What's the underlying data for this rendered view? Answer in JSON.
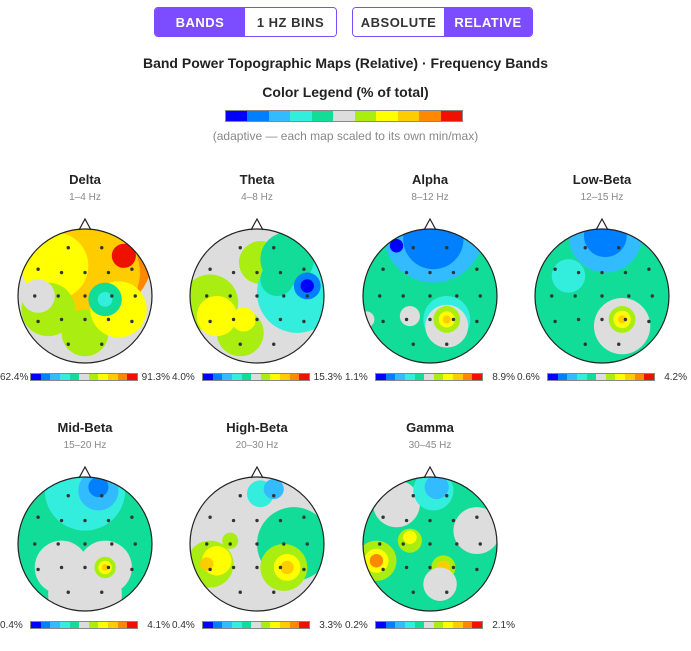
{
  "toggles": {
    "view": [
      {
        "label": "BANDS",
        "active": true
      },
      {
        "label": "1 HZ BINS",
        "active": false
      }
    ],
    "scale": [
      {
        "label": "ABSOLUTE",
        "active": false
      },
      {
        "label": "RELATIVE",
        "active": true
      }
    ]
  },
  "title": "Band Power Topographic Maps (Relative) · Frequency Bands",
  "legend": {
    "title": "Color Legend (% of total)",
    "note": "(adaptive — each map scaled to its own min/max)",
    "colors": [
      "#0000ff",
      "#0080ff",
      "#33bbff",
      "#33eedd",
      "#11dd99",
      "#dddddd",
      "#aaee11",
      "#ffff00",
      "#ffcc00",
      "#ff8800",
      "#ee1100"
    ]
  },
  "chart_data": {
    "type": "heatmap",
    "maps": [
      {
        "name": "Delta",
        "range": "1–4 Hz",
        "min": "62.4%",
        "max": "91.3%",
        "base": 5,
        "blobs": [
          {
            "x": 0.12,
            "y": -0.62,
            "r": 0.9,
            "v": 9
          },
          {
            "x": 0.1,
            "y": -0.35,
            "r": 0.72,
            "v": 8
          },
          {
            "x": -0.45,
            "y": -0.45,
            "r": 0.5,
            "v": 7
          },
          {
            "x": -0.55,
            "y": 0.2,
            "r": 0.4,
            "v": 6
          },
          {
            "x": 0.0,
            "y": 0.55,
            "r": 0.35,
            "v": 6
          },
          {
            "x": 0.5,
            "y": 0.2,
            "r": 0.42,
            "v": 7
          },
          {
            "x": 0.3,
            "y": 0.05,
            "r": 0.25,
            "v": 4
          },
          {
            "x": -0.7,
            "y": 0.0,
            "r": 0.25,
            "v": 5
          },
          {
            "x": 0.58,
            "y": -0.6,
            "r": 0.18,
            "v": 10
          },
          {
            "x": 0.3,
            "y": 0.05,
            "r": 0.11,
            "v": 3
          }
        ]
      },
      {
        "name": "Theta",
        "range": "4–8 Hz",
        "min": "4.0%",
        "max": "15.3%",
        "base": 5,
        "blobs": [
          {
            "x": -0.7,
            "y": 0.1,
            "r": 0.42,
            "v": 6
          },
          {
            "x": 0.05,
            "y": -0.5,
            "r": 0.32,
            "v": 6
          },
          {
            "x": -0.25,
            "y": 0.55,
            "r": 0.35,
            "v": 6
          },
          {
            "x": 0.6,
            "y": -0.05,
            "r": 0.6,
            "v": 3
          },
          {
            "x": 0.45,
            "y": -0.55,
            "r": 0.4,
            "v": 4
          },
          {
            "x": 0.3,
            "y": -0.25,
            "r": 0.25,
            "v": 4
          },
          {
            "x": -0.6,
            "y": 0.3,
            "r": 0.3,
            "v": 7
          },
          {
            "x": -0.2,
            "y": 0.35,
            "r": 0.18,
            "v": 7
          },
          {
            "x": 0.75,
            "y": -0.15,
            "r": 0.2,
            "v": 1
          },
          {
            "x": 0.75,
            "y": -0.15,
            "r": 0.1,
            "v": 0
          }
        ]
      },
      {
        "name": "Alpha",
        "range": "8–12 Hz",
        "min": "1.1%",
        "max": "8.9%",
        "base": 4,
        "blobs": [
          {
            "x": 0.05,
            "y": -0.95,
            "r": 0.75,
            "v": 2
          },
          {
            "x": 0.05,
            "y": -0.85,
            "r": 0.45,
            "v": 1
          },
          {
            "x": 0.25,
            "y": 0.35,
            "r": 0.35,
            "v": 3
          },
          {
            "x": 0.25,
            "y": 0.45,
            "r": 0.32,
            "v": 5
          },
          {
            "x": -0.3,
            "y": 0.3,
            "r": 0.15,
            "v": 5
          },
          {
            "x": -0.95,
            "y": 0.35,
            "r": 0.12,
            "v": 5
          },
          {
            "x": 0.25,
            "y": 0.35,
            "r": 0.2,
            "v": 6
          },
          {
            "x": 0.25,
            "y": 0.35,
            "r": 0.12,
            "v": 7
          },
          {
            "x": 0.25,
            "y": 0.35,
            "r": 0.06,
            "v": 8
          },
          {
            "x": -0.5,
            "y": -0.75,
            "r": 0.1,
            "v": 0
          }
        ]
      },
      {
        "name": "Low-Beta",
        "range": "12–15 Hz",
        "min": "0.6%",
        "max": "4.2%",
        "base": 4,
        "blobs": [
          {
            "x": 0.05,
            "y": -0.9,
            "r": 0.55,
            "v": 2
          },
          {
            "x": 0.05,
            "y": -0.9,
            "r": 0.32,
            "v": 1
          },
          {
            "x": 0.3,
            "y": 0.45,
            "r": 0.42,
            "v": 5
          },
          {
            "x": 0.3,
            "y": 0.35,
            "r": 0.2,
            "v": 6
          },
          {
            "x": 0.3,
            "y": 0.35,
            "r": 0.13,
            "v": 7
          },
          {
            "x": 0.3,
            "y": 0.35,
            "r": 0.06,
            "v": 8
          },
          {
            "x": -0.5,
            "y": -0.3,
            "r": 0.25,
            "v": 3
          }
        ]
      },
      {
        "name": "Mid-Beta",
        "range": "15–20 Hz",
        "min": "0.4%",
        "max": "4.1%",
        "base": 4,
        "blobs": [
          {
            "x": 0.0,
            "y": -0.8,
            "r": 0.6,
            "v": 3
          },
          {
            "x": 0.2,
            "y": -0.8,
            "r": 0.3,
            "v": 2
          },
          {
            "x": 0.2,
            "y": -0.85,
            "r": 0.15,
            "v": 1
          },
          {
            "x": -0.35,
            "y": 0.35,
            "r": 0.4,
            "v": 5
          },
          {
            "x": 0.3,
            "y": 0.35,
            "r": 0.4,
            "v": 5
          },
          {
            "x": 0.0,
            "y": 0.75,
            "r": 0.55,
            "v": 5
          },
          {
            "x": 0.3,
            "y": 0.35,
            "r": 0.16,
            "v": 6
          },
          {
            "x": 0.3,
            "y": 0.35,
            "r": 0.1,
            "v": 7
          },
          {
            "x": 0.3,
            "y": 0.35,
            "r": 0.05,
            "v": 8
          }
        ]
      },
      {
        "name": "High-Beta",
        "range": "20–30 Hz",
        "min": "0.4%",
        "max": "3.3%",
        "base": 5,
        "blobs": [
          {
            "x": 0.55,
            "y": 0.0,
            "r": 0.55,
            "v": 4
          },
          {
            "x": 0.05,
            "y": -0.75,
            "r": 0.2,
            "v": 3
          },
          {
            "x": 0.25,
            "y": -0.82,
            "r": 0.15,
            "v": 2
          },
          {
            "x": -0.7,
            "y": 0.3,
            "r": 0.35,
            "v": 6
          },
          {
            "x": -0.6,
            "y": 0.25,
            "r": 0.22,
            "v": 7
          },
          {
            "x": 0.4,
            "y": 0.35,
            "r": 0.35,
            "v": 6
          },
          {
            "x": 0.45,
            "y": 0.35,
            "r": 0.2,
            "v": 7
          },
          {
            "x": 0.45,
            "y": 0.35,
            "r": 0.1,
            "v": 8
          },
          {
            "x": -0.4,
            "y": -0.05,
            "r": 0.12,
            "v": 6
          },
          {
            "x": -0.75,
            "y": 0.3,
            "r": 0.1,
            "v": 8
          }
        ]
      },
      {
        "name": "Gamma",
        "range": "30–45 Hz",
        "min": "0.2%",
        "max": "2.1%",
        "base": 4,
        "blobs": [
          {
            "x": -0.5,
            "y": -0.6,
            "r": 0.35,
            "v": 5
          },
          {
            "x": 0.7,
            "y": -0.2,
            "r": 0.35,
            "v": 5
          },
          {
            "x": 0.05,
            "y": -0.8,
            "r": 0.3,
            "v": 3
          },
          {
            "x": 0.1,
            "y": -0.85,
            "r": 0.18,
            "v": 2
          },
          {
            "x": -0.8,
            "y": 0.25,
            "r": 0.3,
            "v": 6
          },
          {
            "x": -0.8,
            "y": 0.25,
            "r": 0.18,
            "v": 7
          },
          {
            "x": -0.8,
            "y": 0.25,
            "r": 0.1,
            "v": 9
          },
          {
            "x": -0.3,
            "y": -0.05,
            "r": 0.18,
            "v": 6
          },
          {
            "x": -0.3,
            "y": -0.1,
            "r": 0.1,
            "v": 7
          },
          {
            "x": 0.2,
            "y": 0.35,
            "r": 0.18,
            "v": 6
          },
          {
            "x": 0.2,
            "y": 0.35,
            "r": 0.1,
            "v": 8
          },
          {
            "x": 0.15,
            "y": 0.6,
            "r": 0.25,
            "v": 5
          }
        ]
      }
    ]
  }
}
